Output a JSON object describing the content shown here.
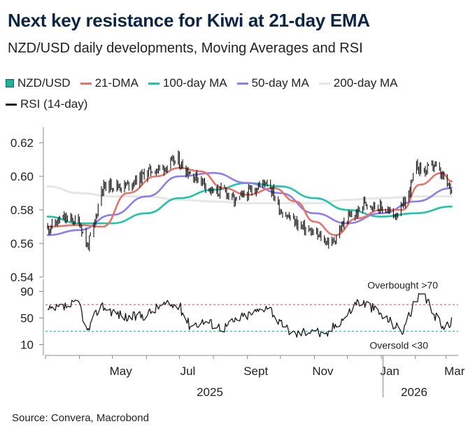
{
  "header": {
    "title": "Next key resistance for Kiwi at 21-day EMA",
    "subtitle": "NZD/USD daily developments, Moving Averages and RSI"
  },
  "legend": {
    "items": [
      {
        "label": "NZD/USD",
        "color": "#1fb39c",
        "kind": "box"
      },
      {
        "label": "21-DMA",
        "color": "#e8736a",
        "kind": "line"
      },
      {
        "label": "100-day MA",
        "color": "#22c4a9",
        "kind": "line"
      },
      {
        "label": "50-day MA",
        "color": "#8d7ee8",
        "kind": "line"
      },
      {
        "label": "200-day MA",
        "color": "#e6e6e6",
        "kind": "line"
      },
      {
        "label": "RSI (14-day)",
        "color": "#1a1a1a",
        "kind": "line"
      }
    ]
  },
  "source": "Source: Convera, Macrobond",
  "chart_data": {
    "type": "line",
    "x_months": [
      "May",
      "Jul",
      "Sept",
      "Nov",
      "Jan",
      "Mar"
    ],
    "x_years": [
      "2025",
      "2026"
    ],
    "price_panel": {
      "ylim": [
        0.54,
        0.625
      ],
      "yticks": [
        "0.62",
        "0.60",
        "0.58",
        "0.56",
        "0.54"
      ],
      "series": [
        {
          "name": "NZD/USD",
          "color": "#1a1a1a",
          "dates": [
            "2025-03-03",
            "2025-03-17",
            "2025-04-01",
            "2025-04-08",
            "2025-04-14",
            "2025-04-21",
            "2025-05-01",
            "2025-05-12",
            "2025-05-26",
            "2025-06-02",
            "2025-06-16",
            "2025-06-30",
            "2025-07-01",
            "2025-07-14",
            "2025-07-21",
            "2025-08-01",
            "2025-08-11",
            "2025-08-20",
            "2025-09-01",
            "2025-09-15",
            "2025-09-19",
            "2025-10-01",
            "2025-10-10",
            "2025-10-20",
            "2025-11-03",
            "2025-11-10",
            "2025-11-17",
            "2025-11-24",
            "2025-12-01",
            "2025-12-10",
            "2025-12-17",
            "2025-12-24",
            "2026-01-05",
            "2026-01-12",
            "2026-01-19",
            "2026-01-26",
            "2026-02-02",
            "2026-02-10",
            "2026-02-18",
            "2026-02-25",
            "2026-03-02",
            "2026-03-06"
          ],
          "values": [
            0.569,
            0.575,
            0.573,
            0.558,
            0.569,
            0.593,
            0.595,
            0.594,
            0.599,
            0.603,
            0.605,
            0.61,
            0.608,
            0.6,
            0.598,
            0.59,
            0.592,
            0.585,
            0.59,
            0.596,
            0.598,
            0.58,
            0.575,
            0.57,
            0.565,
            0.562,
            0.56,
            0.568,
            0.575,
            0.578,
            0.585,
            0.583,
            0.58,
            0.577,
            0.58,
            0.59,
            0.606,
            0.603,
            0.607,
            0.6,
            0.595,
            0.592
          ]
        },
        {
          "name": "21-DMA",
          "color": "#e8736a",
          "dates": [
            "2025-03-03",
            "2025-04-01",
            "2025-04-22",
            "2025-05-15",
            "2025-06-10",
            "2025-07-01",
            "2025-07-20",
            "2025-08-10",
            "2025-09-01",
            "2025-09-25",
            "2025-10-15",
            "2025-11-01",
            "2025-11-20",
            "2025-12-10",
            "2026-01-01",
            "2026-01-20",
            "2026-02-05",
            "2026-02-25",
            "2026-03-06"
          ],
          "values": [
            0.57,
            0.571,
            0.57,
            0.59,
            0.6,
            0.605,
            0.603,
            0.593,
            0.589,
            0.593,
            0.585,
            0.573,
            0.565,
            0.575,
            0.58,
            0.58,
            0.595,
            0.602,
            0.597
          ]
        },
        {
          "name": "50-day MA",
          "color": "#8d7ee8",
          "dates": [
            "2025-03-03",
            "2025-04-01",
            "2025-05-01",
            "2025-06-01",
            "2025-07-01",
            "2025-08-01",
            "2025-09-01",
            "2025-10-01",
            "2025-11-01",
            "2025-12-01",
            "2026-01-01",
            "2026-02-01",
            "2026-03-06"
          ],
          "values": [
            0.565,
            0.568,
            0.577,
            0.588,
            0.6,
            0.602,
            0.596,
            0.59,
            0.578,
            0.572,
            0.578,
            0.585,
            0.593
          ]
        },
        {
          "name": "100-day MA",
          "color": "#22c4a9",
          "dates": [
            "2025-03-03",
            "2025-04-01",
            "2025-05-01",
            "2025-06-01",
            "2025-07-01",
            "2025-08-01",
            "2025-09-01",
            "2025-10-01",
            "2025-11-01",
            "2025-12-01",
            "2026-01-01",
            "2026-02-01",
            "2026-03-06"
          ],
          "values": [
            0.576,
            0.572,
            0.572,
            0.578,
            0.587,
            0.592,
            0.596,
            0.594,
            0.587,
            0.58,
            0.576,
            0.578,
            0.582
          ]
        },
        {
          "name": "200-day MA",
          "color": "#e6e6e6",
          "dates": [
            "2025-03-03",
            "2025-04-01",
            "2025-05-01",
            "2025-06-01",
            "2025-07-01",
            "2025-08-01",
            "2025-09-01",
            "2025-10-01",
            "2025-11-01",
            "2025-12-01",
            "2026-01-01",
            "2026-02-01",
            "2026-03-06"
          ],
          "values": [
            0.594,
            0.59,
            0.588,
            0.588,
            0.586,
            0.585,
            0.584,
            0.584,
            0.584,
            0.586,
            0.587,
            0.588,
            0.588
          ]
        }
      ]
    },
    "rsi_panel": {
      "ylim": [
        0,
        100
      ],
      "yticks": [
        "90",
        "50",
        "10"
      ],
      "overbought": 70,
      "oversold": 30,
      "overbought_label": "Overbought >70",
      "oversold_label": "Oversold <30",
      "series": [
        {
          "name": "RSI (14-day)",
          "color": "#1a1a1a",
          "dates": [
            "2025-03-03",
            "2025-03-15",
            "2025-04-01",
            "2025-04-08",
            "2025-04-20",
            "2025-05-01",
            "2025-05-15",
            "2025-06-01",
            "2025-06-15",
            "2025-07-01",
            "2025-07-10",
            "2025-07-25",
            "2025-08-10",
            "2025-08-25",
            "2025-09-10",
            "2025-09-20",
            "2025-10-01",
            "2025-10-15",
            "2025-11-01",
            "2025-11-10",
            "2025-11-20",
            "2025-12-01",
            "2025-12-10",
            "2025-12-20",
            "2026-01-05",
            "2026-01-20",
            "2026-02-01",
            "2026-02-08",
            "2026-02-20",
            "2026-03-01",
            "2026-03-06"
          ],
          "values": [
            60,
            65,
            72,
            28,
            70,
            60,
            50,
            55,
            70,
            68,
            40,
            45,
            35,
            50,
            60,
            70,
            40,
            25,
            35,
            20,
            40,
            55,
            75,
            70,
            50,
            30,
            75,
            85,
            50,
            35,
            45
          ]
        }
      ]
    }
  }
}
